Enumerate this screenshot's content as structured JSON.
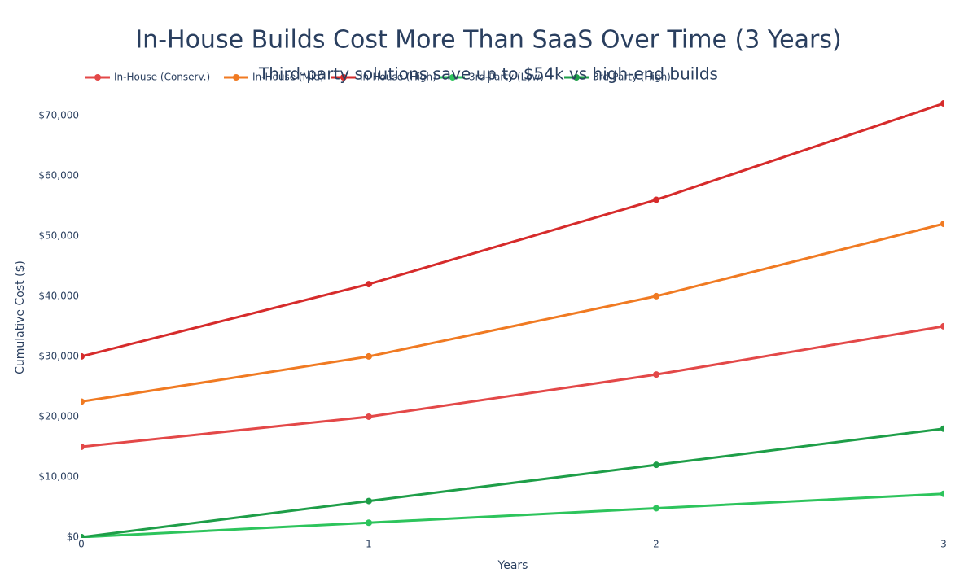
{
  "chart_data": {
    "type": "line",
    "title": "In-House Builds Cost More Than SaaS Over Time (3 Years)",
    "subtitle": "Third-party solutions save up to $54k vs high-end builds",
    "x_label": "Years",
    "y_label": "Cumulative Cost ($)",
    "x": [
      0,
      1,
      2,
      3
    ],
    "series": [
      {
        "name": "In-House (Conserv.)",
        "color": "#e34848",
        "values": [
          15000,
          20000,
          27000,
          35000
        ]
      },
      {
        "name": "In-House (Mid)",
        "color": "#f07a22",
        "values": [
          22500,
          30000,
          40000,
          52000
        ]
      },
      {
        "name": "In-House (High)",
        "color": "#d62b2b",
        "values": [
          30000,
          42000,
          56000,
          72000
        ]
      },
      {
        "name": "3rd-Party (Low)",
        "color": "#2dc45c",
        "values": [
          0,
          2400,
          4800,
          7200
        ]
      },
      {
        "name": "3rd-Party (High)",
        "color": "#1e9e48",
        "values": [
          0,
          6000,
          12000,
          18000
        ]
      }
    ],
    "xlim": [
      0,
      3
    ],
    "xticks": [
      0,
      1,
      2,
      3
    ],
    "ylim": [
      0,
      74300
    ],
    "yticks": [
      {
        "value": 0,
        "label": "$0"
      },
      {
        "value": 10000,
        "label": "$10,000"
      },
      {
        "value": 20000,
        "label": "$20,000"
      },
      {
        "value": 30000,
        "label": "$30,000"
      },
      {
        "value": 40000,
        "label": "$40,000"
      },
      {
        "value": 50000,
        "label": "$50,000"
      },
      {
        "value": 60000,
        "label": "$60,000"
      },
      {
        "value": 70000,
        "label": "$70,000"
      }
    ],
    "grid": false
  }
}
